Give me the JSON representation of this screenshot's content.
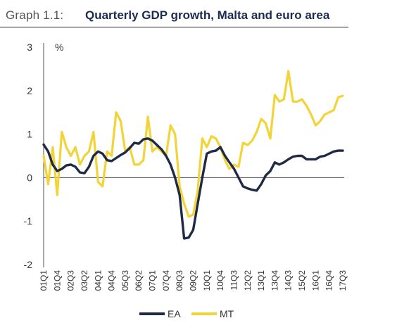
{
  "header": {
    "label": "Graph 1.1:",
    "title": "Quarterly GDP growth, Malta and euro area"
  },
  "colors": {
    "EA": "#1f2a44",
    "MT": "#f2d438",
    "axis": "#555555",
    "text": "#333333"
  },
  "chart_data": {
    "type": "line",
    "title": "Quarterly GDP growth, Malta and euro area",
    "ylabel": "%",
    "ylim": [
      -2,
      3
    ],
    "yticks": [
      -2,
      -1,
      0,
      1,
      2,
      3
    ],
    "grid": false,
    "legend": "bottom-center",
    "x": [
      "01Q1",
      "01Q2",
      "01Q3",
      "01Q4",
      "02Q1",
      "02Q2",
      "02Q3",
      "02Q4",
      "03Q1",
      "03Q2",
      "03Q3",
      "03Q4",
      "04Q1",
      "04Q2",
      "04Q3",
      "04Q4",
      "05Q1",
      "05Q2",
      "05Q3",
      "05Q4",
      "06Q1",
      "06Q2",
      "06Q3",
      "06Q4",
      "07Q1",
      "07Q2",
      "07Q3",
      "07Q4",
      "08Q1",
      "08Q2",
      "08Q3",
      "08Q4",
      "09Q1",
      "09Q2",
      "09Q3",
      "09Q4",
      "10Q1",
      "10Q2",
      "10Q3",
      "10Q4",
      "11Q1",
      "11Q2",
      "11Q3",
      "11Q4",
      "12Q1",
      "12Q2",
      "12Q3",
      "12Q4",
      "13Q1",
      "13Q2",
      "13Q3",
      "13Q4",
      "14Q1",
      "14Q2",
      "14Q3",
      "14Q4",
      "15Q1",
      "15Q2",
      "15Q3",
      "15Q4",
      "16Q1",
      "16Q2",
      "16Q3",
      "16Q4",
      "17Q1",
      "17Q2",
      "17Q3"
    ],
    "xticklabels": [
      "01Q1",
      "01Q4",
      "02Q3",
      "03Q2",
      "04Q1",
      "04Q4",
      "05Q3",
      "06Q2",
      "07Q1",
      "07Q4",
      "08Q3",
      "09Q2",
      "10Q1",
      "10Q4",
      "11Q3",
      "12Q2",
      "13Q1",
      "13Q4",
      "14Q3",
      "15Q2",
      "16Q1",
      "16Q4",
      "17Q3"
    ],
    "series": [
      {
        "name": "EA",
        "values": [
          0.76,
          0.6,
          0.3,
          0.15,
          0.2,
          0.28,
          0.3,
          0.25,
          0.12,
          0.1,
          0.25,
          0.5,
          0.6,
          0.55,
          0.4,
          0.38,
          0.45,
          0.52,
          0.58,
          0.68,
          0.8,
          0.78,
          0.88,
          0.9,
          0.85,
          0.75,
          0.65,
          0.5,
          0.3,
          0.0,
          -0.4,
          -1.4,
          -1.38,
          -1.2,
          -0.6,
          0.0,
          0.55,
          0.6,
          0.62,
          0.7,
          0.5,
          0.35,
          0.2,
          0.0,
          -0.2,
          -0.25,
          -0.28,
          -0.3,
          -0.15,
          0.05,
          0.15,
          0.35,
          0.3,
          0.35,
          0.42,
          0.48,
          0.5,
          0.5,
          0.42,
          0.42,
          0.42,
          0.48,
          0.5,
          0.55,
          0.6,
          0.62,
          0.62
        ]
      },
      {
        "name": "MT",
        "values": [
          0.5,
          -0.15,
          0.7,
          -0.4,
          1.05,
          0.7,
          0.5,
          0.7,
          0.3,
          0.5,
          0.6,
          1.05,
          -0.1,
          -0.2,
          0.6,
          0.5,
          1.5,
          1.3,
          0.6,
          0.7,
          0.3,
          0.3,
          0.4,
          1.4,
          0.6,
          0.7,
          0.6,
          0.5,
          1.2,
          1.0,
          -0.2,
          -0.6,
          -0.9,
          -0.85,
          -0.3,
          0.9,
          0.7,
          0.95,
          0.9,
          0.7,
          0.4,
          0.2,
          0.3,
          0.25,
          0.8,
          0.75,
          0.85,
          1.05,
          1.35,
          1.25,
          0.9,
          1.9,
          1.75,
          1.8,
          2.45,
          1.75,
          1.75,
          1.8,
          1.65,
          1.45,
          1.2,
          1.3,
          1.45,
          1.5,
          1.55,
          1.85,
          1.88
        ]
      }
    ]
  }
}
